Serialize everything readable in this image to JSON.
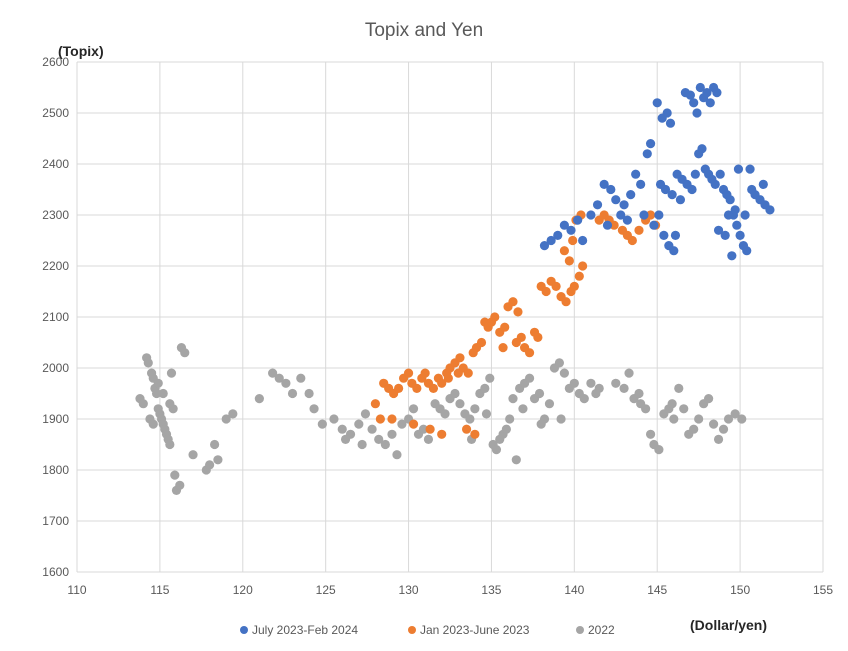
{
  "chart_data": {
    "type": "scatter",
    "title": "Topix and Yen",
    "ylabel": "(Topix)",
    "xlabel": "(Dollar/yen)",
    "xlim": [
      110,
      155
    ],
    "ylim": [
      1600,
      2600
    ],
    "xticks": [
      110,
      115,
      120,
      125,
      130,
      135,
      140,
      145,
      150,
      155
    ],
    "yticks": [
      1600,
      1700,
      1800,
      1900,
      2000,
      2100,
      2200,
      2300,
      2400,
      2500,
      2600
    ],
    "grid": true,
    "legend_position": "bottom",
    "series": [
      {
        "name": "July 2023-Feb 2024",
        "color": "#4472c4",
        "points": [
          [
            138.2,
            2240
          ],
          [
            138.6,
            2250
          ],
          [
            139.0,
            2260
          ],
          [
            139.4,
            2280
          ],
          [
            139.8,
            2270
          ],
          [
            140.2,
            2290
          ],
          [
            140.5,
            2250
          ],
          [
            141.0,
            2300
          ],
          [
            141.4,
            2320
          ],
          [
            141.8,
            2360
          ],
          [
            142.2,
            2350
          ],
          [
            142.5,
            2330
          ],
          [
            142.8,
            2300
          ],
          [
            143.0,
            2320
          ],
          [
            143.4,
            2340
          ],
          [
            143.7,
            2380
          ],
          [
            144.0,
            2360
          ],
          [
            144.2,
            2300
          ],
          [
            144.4,
            2420
          ],
          [
            144.6,
            2440
          ],
          [
            144.8,
            2280
          ],
          [
            145.0,
            2520
          ],
          [
            145.3,
            2490
          ],
          [
            145.6,
            2500
          ],
          [
            145.8,
            2480
          ],
          [
            145.2,
            2360
          ],
          [
            145.5,
            2350
          ],
          [
            145.9,
            2340
          ],
          [
            145.4,
            2260
          ],
          [
            145.7,
            2240
          ],
          [
            146.0,
            2230
          ],
          [
            146.2,
            2380
          ],
          [
            146.5,
            2370
          ],
          [
            146.7,
            2540
          ],
          [
            147.0,
            2535
          ],
          [
            147.2,
            2520
          ],
          [
            147.4,
            2500
          ],
          [
            147.6,
            2550
          ],
          [
            147.8,
            2530
          ],
          [
            148.0,
            2540
          ],
          [
            148.2,
            2520
          ],
          [
            148.4,
            2550
          ],
          [
            148.6,
            2540
          ],
          [
            147.5,
            2420
          ],
          [
            147.7,
            2430
          ],
          [
            147.9,
            2390
          ],
          [
            148.1,
            2380
          ],
          [
            148.3,
            2370
          ],
          [
            148.5,
            2360
          ],
          [
            148.8,
            2380
          ],
          [
            149.0,
            2350
          ],
          [
            149.2,
            2340
          ],
          [
            149.4,
            2330
          ],
          [
            149.6,
            2300
          ],
          [
            149.8,
            2280
          ],
          [
            150.0,
            2260
          ],
          [
            150.2,
            2240
          ],
          [
            150.4,
            2230
          ],
          [
            149.5,
            2220
          ],
          [
            149.1,
            2260
          ],
          [
            148.7,
            2270
          ],
          [
            149.9,
            2390
          ],
          [
            150.6,
            2390
          ],
          [
            150.9,
            2340
          ],
          [
            151.2,
            2330
          ],
          [
            151.5,
            2320
          ],
          [
            151.8,
            2310
          ],
          [
            151.4,
            2360
          ],
          [
            146.4,
            2330
          ],
          [
            146.8,
            2360
          ],
          [
            147.1,
            2350
          ],
          [
            147.3,
            2380
          ],
          [
            149.3,
            2300
          ],
          [
            149.7,
            2310
          ],
          [
            150.3,
            2300
          ],
          [
            150.7,
            2350
          ],
          [
            146.1,
            2260
          ],
          [
            145.1,
            2300
          ],
          [
            143.2,
            2290
          ],
          [
            142.0,
            2280
          ]
        ]
      },
      {
        "name": "Jan 2023-June 2023",
        "color": "#ed7d31",
        "points": [
          [
            128.0,
            1930
          ],
          [
            128.3,
            1900
          ],
          [
            128.5,
            1970
          ],
          [
            128.8,
            1960
          ],
          [
            129.1,
            1950
          ],
          [
            129.4,
            1960
          ],
          [
            129.7,
            1980
          ],
          [
            130.0,
            1990
          ],
          [
            130.2,
            1970
          ],
          [
            130.5,
            1960
          ],
          [
            130.8,
            1980
          ],
          [
            131.0,
            1990
          ],
          [
            131.2,
            1970
          ],
          [
            131.5,
            1960
          ],
          [
            131.8,
            1980
          ],
          [
            132.0,
            1970
          ],
          [
            132.3,
            1990
          ],
          [
            132.5,
            2000
          ],
          [
            132.8,
            2010
          ],
          [
            133.0,
            1990
          ],
          [
            133.3,
            2000
          ],
          [
            133.6,
            1990
          ],
          [
            133.9,
            2030
          ],
          [
            134.1,
            2040
          ],
          [
            134.4,
            2050
          ],
          [
            134.6,
            2090
          ],
          [
            134.8,
            2080
          ],
          [
            135.0,
            2090
          ],
          [
            135.2,
            2100
          ],
          [
            135.5,
            2070
          ],
          [
            135.8,
            2080
          ],
          [
            136.0,
            2120
          ],
          [
            136.3,
            2130
          ],
          [
            136.5,
            2050
          ],
          [
            136.8,
            2060
          ],
          [
            137.0,
            2040
          ],
          [
            137.3,
            2030
          ],
          [
            137.6,
            2070
          ],
          [
            137.8,
            2060
          ],
          [
            138.0,
            2160
          ],
          [
            138.3,
            2150
          ],
          [
            138.6,
            2170
          ],
          [
            138.9,
            2160
          ],
          [
            139.2,
            2140
          ],
          [
            139.5,
            2130
          ],
          [
            139.8,
            2150
          ],
          [
            140.0,
            2160
          ],
          [
            140.3,
            2180
          ],
          [
            140.5,
            2200
          ],
          [
            139.7,
            2210
          ],
          [
            139.4,
            2230
          ],
          [
            139.9,
            2250
          ],
          [
            140.1,
            2290
          ],
          [
            140.4,
            2300
          ],
          [
            141.5,
            2290
          ],
          [
            141.8,
            2300
          ],
          [
            142.1,
            2290
          ],
          [
            142.4,
            2280
          ],
          [
            142.9,
            2270
          ],
          [
            143.2,
            2260
          ],
          [
            143.5,
            2250
          ],
          [
            143.9,
            2270
          ],
          [
            144.3,
            2290
          ],
          [
            144.6,
            2300
          ],
          [
            144.9,
            2280
          ],
          [
            131.3,
            1880
          ],
          [
            132.0,
            1870
          ],
          [
            133.5,
            1880
          ],
          [
            134.0,
            1870
          ],
          [
            130.3,
            1890
          ],
          [
            129.0,
            1900
          ],
          [
            135.7,
            2040
          ],
          [
            136.6,
            2110
          ],
          [
            133.1,
            2020
          ],
          [
            132.4,
            1980
          ]
        ]
      },
      {
        "name": "2022",
        "color": "#a5a5a5",
        "points": [
          [
            113.8,
            1940
          ],
          [
            114.0,
            1930
          ],
          [
            114.2,
            2020
          ],
          [
            114.3,
            2010
          ],
          [
            114.5,
            1990
          ],
          [
            114.6,
            1980
          ],
          [
            114.7,
            1960
          ],
          [
            114.8,
            1950
          ],
          [
            114.9,
            1920
          ],
          [
            115.0,
            1910
          ],
          [
            115.1,
            1900
          ],
          [
            115.2,
            1890
          ],
          [
            115.3,
            1880
          ],
          [
            115.4,
            1870
          ],
          [
            115.5,
            1860
          ],
          [
            114.4,
            1900
          ],
          [
            114.6,
            1890
          ],
          [
            115.6,
            1930
          ],
          [
            115.8,
            1920
          ],
          [
            115.9,
            1790
          ],
          [
            116.0,
            1760
          ],
          [
            116.2,
            1770
          ],
          [
            116.3,
            2040
          ],
          [
            116.5,
            2030
          ],
          [
            115.7,
            1990
          ],
          [
            115.2,
            1950
          ],
          [
            114.9,
            1970
          ],
          [
            115.6,
            1850
          ],
          [
            117.0,
            1830
          ],
          [
            117.8,
            1800
          ],
          [
            118.0,
            1810
          ],
          [
            118.3,
            1850
          ],
          [
            118.5,
            1820
          ],
          [
            119.0,
            1900
          ],
          [
            119.4,
            1910
          ],
          [
            121.0,
            1940
          ],
          [
            121.8,
            1990
          ],
          [
            122.2,
            1980
          ],
          [
            122.6,
            1970
          ],
          [
            123.0,
            1950
          ],
          [
            123.5,
            1980
          ],
          [
            124.0,
            1950
          ],
          [
            124.3,
            1920
          ],
          [
            124.8,
            1890
          ],
          [
            125.5,
            1900
          ],
          [
            126.0,
            1880
          ],
          [
            126.5,
            1870
          ],
          [
            127.0,
            1890
          ],
          [
            127.4,
            1910
          ],
          [
            127.8,
            1880
          ],
          [
            128.2,
            1860
          ],
          [
            128.6,
            1850
          ],
          [
            129.0,
            1870
          ],
          [
            129.3,
            1830
          ],
          [
            129.6,
            1890
          ],
          [
            130.0,
            1900
          ],
          [
            130.3,
            1920
          ],
          [
            130.6,
            1870
          ],
          [
            130.9,
            1880
          ],
          [
            131.2,
            1860
          ],
          [
            131.6,
            1930
          ],
          [
            131.9,
            1920
          ],
          [
            132.2,
            1910
          ],
          [
            132.5,
            1940
          ],
          [
            132.8,
            1950
          ],
          [
            133.1,
            1930
          ],
          [
            133.4,
            1910
          ],
          [
            133.7,
            1900
          ],
          [
            134.0,
            1920
          ],
          [
            134.3,
            1950
          ],
          [
            134.6,
            1960
          ],
          [
            134.9,
            1980
          ],
          [
            135.1,
            1850
          ],
          [
            135.3,
            1840
          ],
          [
            135.5,
            1860
          ],
          [
            135.7,
            1870
          ],
          [
            135.9,
            1880
          ],
          [
            136.1,
            1900
          ],
          [
            136.3,
            1940
          ],
          [
            136.5,
            1820
          ],
          [
            136.7,
            1960
          ],
          [
            137.0,
            1970
          ],
          [
            137.3,
            1980
          ],
          [
            137.6,
            1940
          ],
          [
            137.9,
            1950
          ],
          [
            138.2,
            1900
          ],
          [
            138.5,
            1930
          ],
          [
            138.8,
            2000
          ],
          [
            139.1,
            2010
          ],
          [
            139.4,
            1990
          ],
          [
            139.7,
            1960
          ],
          [
            140.0,
            1970
          ],
          [
            140.3,
            1950
          ],
          [
            140.6,
            1940
          ],
          [
            141.0,
            1970
          ],
          [
            141.5,
            1960
          ],
          [
            142.5,
            1970
          ],
          [
            143.0,
            1960
          ],
          [
            143.3,
            1990
          ],
          [
            143.6,
            1940
          ],
          [
            144.0,
            1930
          ],
          [
            144.3,
            1920
          ],
          [
            144.6,
            1870
          ],
          [
            144.8,
            1850
          ],
          [
            145.1,
            1840
          ],
          [
            145.4,
            1910
          ],
          [
            145.7,
            1920
          ],
          [
            146.0,
            1900
          ],
          [
            146.3,
            1960
          ],
          [
            146.6,
            1920
          ],
          [
            146.9,
            1870
          ],
          [
            147.2,
            1880
          ],
          [
            147.5,
            1900
          ],
          [
            147.8,
            1930
          ],
          [
            148.1,
            1940
          ],
          [
            148.4,
            1890
          ],
          [
            148.7,
            1860
          ],
          [
            149.0,
            1880
          ],
          [
            149.3,
            1900
          ],
          [
            149.7,
            1910
          ],
          [
            150.1,
            1900
          ],
          [
            133.8,
            1860
          ],
          [
            134.7,
            1910
          ],
          [
            136.9,
            1920
          ],
          [
            138.0,
            1890
          ],
          [
            139.2,
            1900
          ],
          [
            127.2,
            1850
          ],
          [
            126.2,
            1860
          ],
          [
            141.3,
            1950
          ],
          [
            143.9,
            1950
          ],
          [
            145.9,
            1930
          ]
        ]
      }
    ]
  }
}
